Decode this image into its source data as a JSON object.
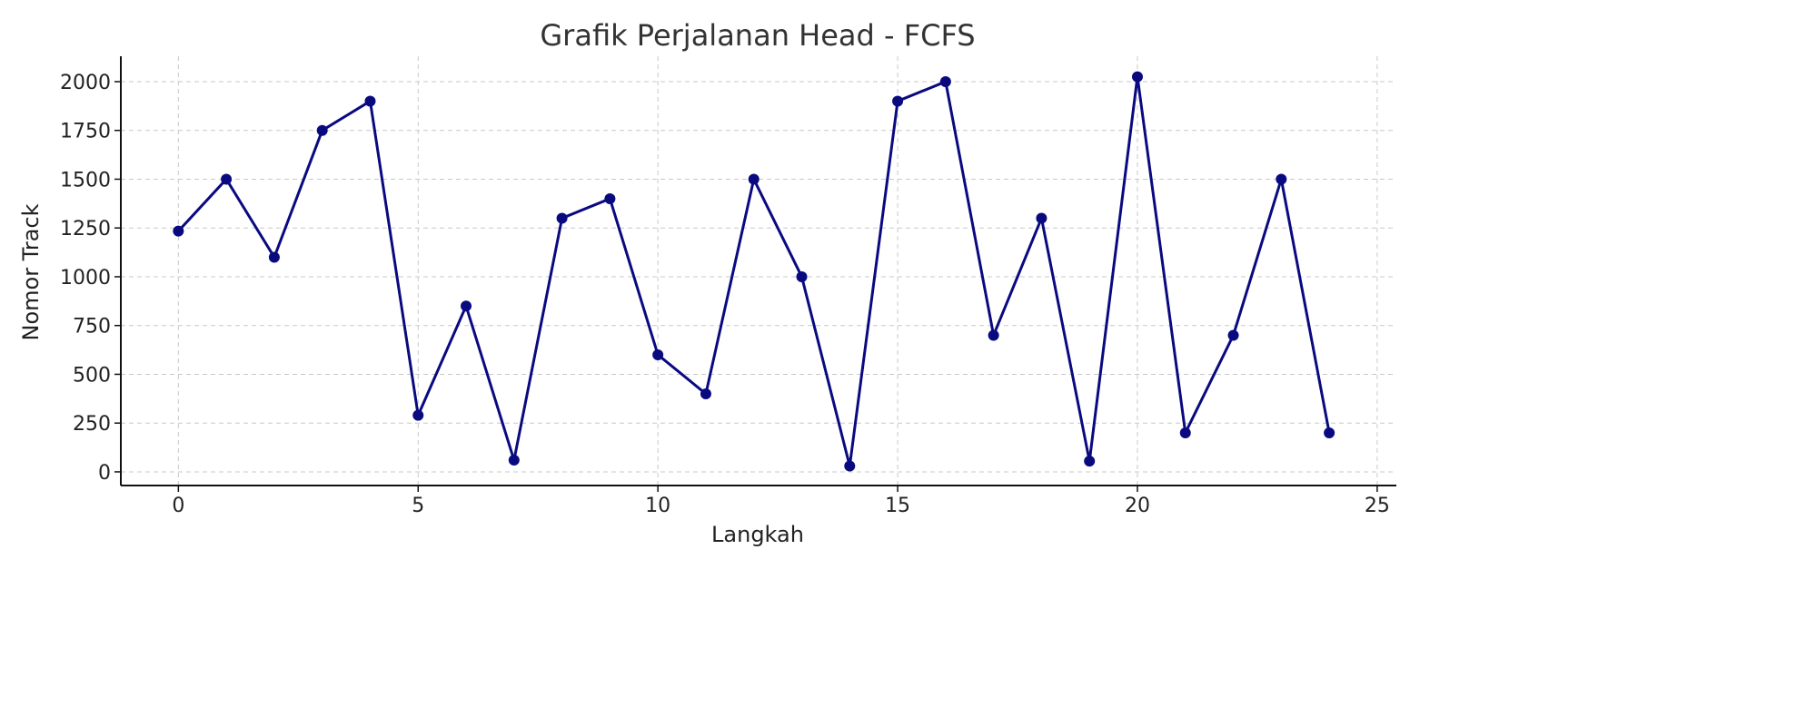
{
  "chart_data": {
    "type": "line",
    "title": "Grafik Perjalanan Head - FCFS",
    "xlabel": "Langkah",
    "ylabel": "Nomor Track",
    "x": [
      0,
      1,
      2,
      3,
      4,
      5,
      6,
      7,
      8,
      9,
      10,
      11,
      12,
      13,
      14,
      15,
      16,
      17,
      18,
      19,
      20,
      21,
      22,
      23,
      24
    ],
    "series": [
      {
        "values": [
          1234,
          1500,
          1100,
          1750,
          1900,
          290,
          850,
          60,
          1300,
          1400,
          600,
          400,
          1500,
          1000,
          30,
          1900,
          2000,
          700,
          1300,
          55,
          2025,
          200,
          700,
          1500,
          200
        ],
        "color": "#0a0a80"
      }
    ],
    "xlim": [
      -1.2,
      25.4
    ],
    "ylim": [
      -70,
      2130
    ],
    "xticks": [
      0,
      5,
      10,
      15,
      20,
      25
    ],
    "yticks": [
      0,
      250,
      500,
      750,
      1000,
      1250,
      1500,
      1750,
      2000
    ],
    "grid": true,
    "legend": "none"
  }
}
